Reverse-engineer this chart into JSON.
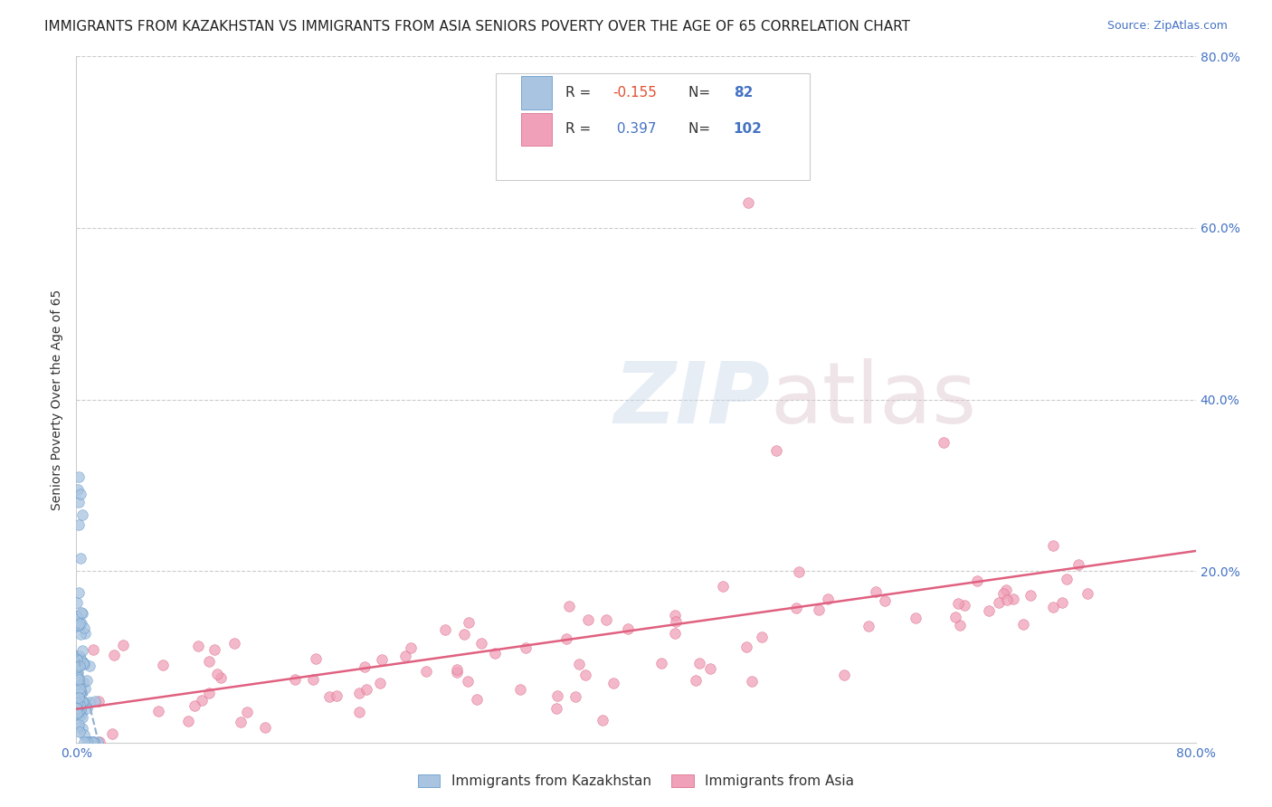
{
  "title": "IMMIGRANTS FROM KAZAKHSTAN VS IMMIGRANTS FROM ASIA SENIORS POVERTY OVER THE AGE OF 65 CORRELATION CHART",
  "source": "Source: ZipAtlas.com",
  "ylabel": "Seniors Poverty Over the Age of 65",
  "xlim": [
    0,
    0.8
  ],
  "ylim": [
    0,
    0.8
  ],
  "grid_color": "#cccccc",
  "grid_style": "--",
  "background_color": "#ffffff",
  "legend_R1": "-0.155",
  "legend_N1": "82",
  "legend_R2": "0.397",
  "legend_N2": "102",
  "series1_color": "#a8c4e0",
  "series1_edge": "#5590c8",
  "series2_color": "#f0a0b8",
  "series2_edge": "#d86080",
  "trendline1_color": "#90b0d0",
  "trendline2_color": "#e06080",
  "legend_label1": "Immigrants from Kazakhstan",
  "legend_label2": "Immigrants from Asia",
  "title_fontsize": 11,
  "source_fontsize": 9,
  "axis_label_fontsize": 10,
  "tick_fontsize": 10,
  "marker_size": 70,
  "marker_alpha": 0.75
}
